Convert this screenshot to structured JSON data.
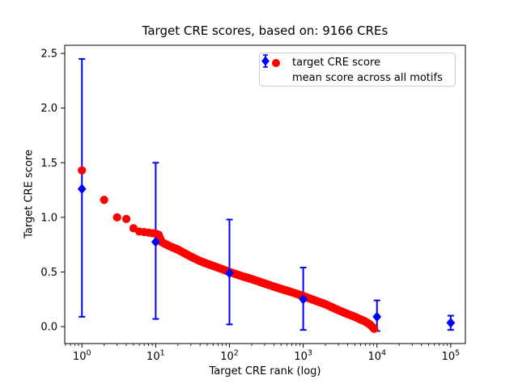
{
  "chart_data": {
    "type": "scatter",
    "title": "Target CRE scores, based on: 9166 CREs",
    "xlabel": "Target CRE rank (log)",
    "ylabel": "Target CRE score",
    "xscale": "log",
    "xlim": [
      0.585,
      158000
    ],
    "ylim": [
      -0.155,
      2.575
    ],
    "xticks_log_exponents": [
      0,
      1,
      2,
      3,
      4,
      5
    ],
    "yticks": [
      0.0,
      0.5,
      1.0,
      1.5,
      2.0,
      2.5
    ],
    "grid": false,
    "background_color": "#ffffff",
    "legend": {
      "position": "upper right",
      "entries": [
        {
          "label": "target CRE score",
          "marker": "circle-icon",
          "color": "#ff0000"
        },
        {
          "label": "mean score across all motifs",
          "marker": "diamond-errorbar-icon",
          "color": "#0000ff"
        }
      ]
    },
    "series": [
      {
        "name": "target CRE score",
        "plot_type": "scatter-dense",
        "marker": "circle",
        "color": "#ff0000",
        "dense_from_rank": 11,
        "points": [
          [
            1,
            1.43
          ],
          [
            2,
            1.16
          ],
          [
            3,
            1.0
          ],
          [
            4,
            0.985
          ],
          [
            5,
            0.9
          ],
          [
            6,
            0.87
          ],
          [
            7,
            0.865
          ],
          [
            8,
            0.86
          ],
          [
            9,
            0.855
          ],
          [
            10,
            0.85
          ],
          [
            11,
            0.84
          ],
          [
            12,
            0.775
          ],
          [
            15,
            0.74
          ],
          [
            20,
            0.705
          ],
          [
            30,
            0.64
          ],
          [
            40,
            0.6
          ],
          [
            50,
            0.575
          ],
          [
            70,
            0.54
          ],
          [
            100,
            0.5
          ],
          [
            150,
            0.46
          ],
          [
            200,
            0.435
          ],
          [
            330,
            0.385
          ],
          [
            500,
            0.345
          ],
          [
            700,
            0.315
          ],
          [
            1000,
            0.28
          ],
          [
            1500,
            0.235
          ],
          [
            2000,
            0.205
          ],
          [
            2900,
            0.155
          ],
          [
            4000,
            0.115
          ],
          [
            5000,
            0.09
          ],
          [
            6000,
            0.065
          ],
          [
            6800,
            0.05
          ],
          [
            8000,
            0.02
          ],
          [
            9166,
            -0.02
          ]
        ]
      },
      {
        "name": "mean score across all motifs",
        "plot_type": "errorbar",
        "marker": "diamond",
        "color": "#0000ff",
        "points": [
          {
            "x": 1,
            "y": 1.26,
            "lo": 0.09,
            "hi": 2.45
          },
          {
            "x": 10,
            "y": 0.775,
            "lo": 0.07,
            "hi": 1.5
          },
          {
            "x": 100,
            "y": 0.49,
            "lo": 0.02,
            "hi": 0.98
          },
          {
            "x": 1000,
            "y": 0.25,
            "lo": -0.03,
            "hi": 0.54
          },
          {
            "x": 10000,
            "y": 0.09,
            "lo": -0.04,
            "hi": 0.24
          },
          {
            "x": 100000,
            "y": 0.035,
            "lo": -0.03,
            "hi": 0.1
          }
        ]
      }
    ]
  }
}
